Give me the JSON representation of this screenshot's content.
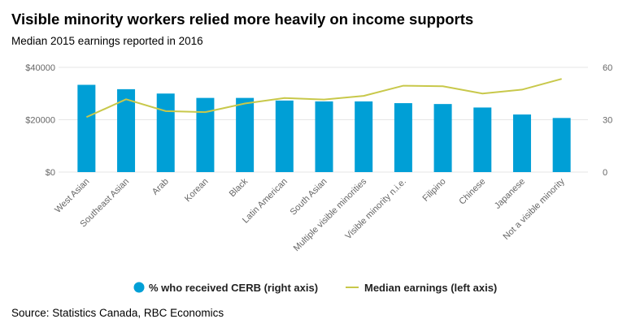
{
  "title": "Visible minority workers relied more heavily on income supports",
  "subtitle": "Median 2015 earnings reported in 2016",
  "source": "Source: Statistics Canada, RBC Economics",
  "colors": {
    "bar": "#009fd6",
    "line": "#c8c84a",
    "grid": "#e6e6e6"
  },
  "chart_data": {
    "type": "bar",
    "title": "Visible minority workers relied more heavily on income supports",
    "subtitle": "Median 2015 earnings reported in 2016",
    "categories": [
      "West Asian",
      "Southeast Asian",
      "Arab",
      "Korean",
      "Black",
      "Latin American",
      "South Asian",
      "Multiple visible minorities",
      "Visible minority n.i.e.",
      "Filipino",
      "Chinese",
      "Japanese",
      "Not a visible minority"
    ],
    "series": [
      {
        "name": "% who received CERB (right axis)",
        "type": "bar",
        "axis": "right",
        "values": [
          50,
          47.5,
          45,
          42.5,
          42.5,
          41,
          40.5,
          40.5,
          39.5,
          39,
          37,
          33,
          31
        ]
      },
      {
        "name": "Median earnings (left axis)",
        "type": "line",
        "axis": "left",
        "values": [
          21000,
          27800,
          23300,
          22900,
          26200,
          28300,
          27700,
          29100,
          33000,
          32800,
          30000,
          31500,
          35600
        ]
      }
    ],
    "left_axis": {
      "ylim": [
        0,
        40000
      ],
      "ticks": [
        0,
        20000,
        40000
      ],
      "tick_labels": [
        "$0",
        "$20000",
        "$40000"
      ]
    },
    "right_axis": {
      "ylim": [
        0,
        60
      ],
      "ticks": [
        0,
        30,
        60
      ],
      "tick_labels": [
        "0",
        "30",
        "60"
      ]
    },
    "legend": {
      "position": "bottom",
      "items": [
        "% who received CERB (right axis)",
        "Median earnings (left axis)"
      ]
    },
    "grid": true
  }
}
